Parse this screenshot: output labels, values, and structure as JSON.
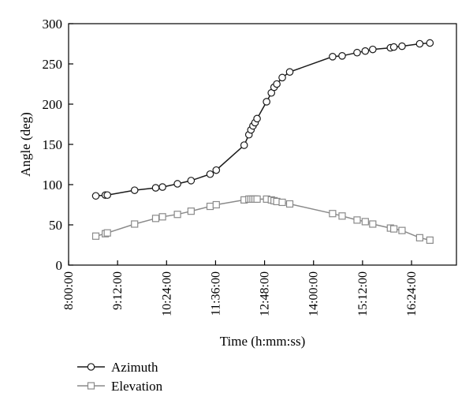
{
  "chart_data": {
    "type": "line",
    "xlabel": "Time (h:mm:ss)",
    "ylabel": "Angle (deg)",
    "ylim": [
      0,
      300
    ],
    "xlim": [
      "8:00:00",
      "17:30:00"
    ],
    "x_ticks": [
      "8:00:00",
      "9:12:00",
      "10:24:00",
      "11:36:00",
      "12:48:00",
      "14:00:00",
      "15:12:00",
      "16:24:00"
    ],
    "y_ticks": [
      0,
      50,
      100,
      150,
      200,
      250,
      300
    ],
    "grid": false,
    "legend_position": "bottom-left",
    "series": [
      {
        "name": "Azimuth",
        "marker": "circle",
        "color": "#1a1a1a",
        "x": [
          "8:40:00",
          "8:54:00",
          "8:57:00",
          "9:37:00",
          "10:08:00",
          "10:18:00",
          "10:40:00",
          "11:00:00",
          "11:28:00",
          "11:37:00",
          "12:18:00",
          "12:25:00",
          "12:28:00",
          "12:31:00",
          "12:34:00",
          "12:37:00",
          "12:51:00",
          "12:58:00",
          "13:02:00",
          "13:06:00",
          "13:14:00",
          "13:25:00",
          "14:28:00",
          "14:42:00",
          "15:04:00",
          "15:16:00",
          "15:27:00",
          "15:53:00",
          "15:58:00",
          "16:10:00",
          "16:36:00",
          "16:51:00"
        ],
        "values": [
          86,
          87,
          87,
          93,
          96,
          97,
          101,
          105,
          113,
          118,
          149,
          162,
          168,
          173,
          177,
          182,
          203,
          214,
          221,
          225,
          233,
          240,
          259,
          260,
          264,
          266,
          268,
          270,
          271,
          272,
          275,
          276
        ]
      },
      {
        "name": "Elevation",
        "marker": "square",
        "color": "#8a8a8a",
        "x": [
          "8:40:00",
          "8:54:00",
          "8:57:00",
          "9:37:00",
          "10:08:00",
          "10:18:00",
          "10:40:00",
          "11:00:00",
          "11:28:00",
          "11:37:00",
          "12:18:00",
          "12:25:00",
          "12:28:00",
          "12:31:00",
          "12:34:00",
          "12:37:00",
          "12:51:00",
          "12:58:00",
          "13:02:00",
          "13:06:00",
          "13:14:00",
          "13:25:00",
          "14:28:00",
          "14:42:00",
          "15:04:00",
          "15:16:00",
          "15:27:00",
          "15:53:00",
          "15:58:00",
          "16:10:00",
          "16:36:00",
          "16:51:00"
        ],
        "values": [
          36,
          39,
          40,
          51,
          58,
          60,
          63,
          67,
          73,
          75,
          81,
          82,
          82,
          82,
          82,
          82,
          82,
          81,
          80,
          79,
          78,
          76,
          64,
          61,
          56,
          54,
          51,
          46,
          45,
          43,
          34,
          31
        ]
      }
    ]
  }
}
